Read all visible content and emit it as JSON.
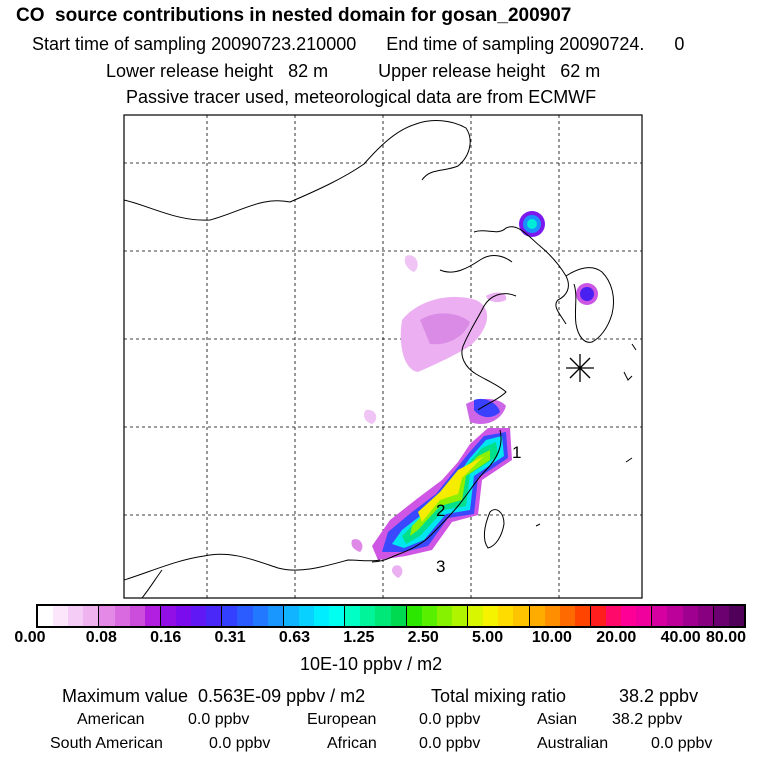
{
  "header": {
    "title": "CO  source contributions in nested domain for gosan_200907",
    "line1": "Start time of sampling 20090723.210000      End time of sampling 20090724.      0",
    "line2": "Lower release height   82 m          Upper release height   62 m",
    "line3": "Passive tracer used, meteorological data are from ECMWF"
  },
  "map": {
    "labels": [
      "1",
      "2",
      "3"
    ],
    "receptor_marker": "star-marker"
  },
  "colorbar": {
    "ticks": [
      "0.00",
      "0.08",
      "0.16",
      "0.31",
      "0.63",
      "1.25",
      "2.50",
      "5.00",
      "10.00",
      "20.00",
      "40.00",
      "80.00"
    ],
    "colors": [
      "#ffffff",
      "#fbe6fb",
      "#f5ccf5",
      "#efb3f0",
      "#e48ae6",
      "#d96ae0",
      "#cc4cdc",
      "#b21fe0",
      "#9210e6",
      "#7a0cee",
      "#6018f4",
      "#4a28f8",
      "#3340ff",
      "#2a5cff",
      "#2278ff",
      "#1a96ff",
      "#10b4ff",
      "#08d0ff",
      "#00ecff",
      "#00fff0",
      "#00ffc4",
      "#00f59a",
      "#00e878",
      "#00da50",
      "#2ce800",
      "#58f000",
      "#86f200",
      "#b0f400",
      "#d8f600",
      "#f5f300",
      "#ffdc00",
      "#ffc400",
      "#ffac00",
      "#ff8e00",
      "#ff6a00",
      "#ff4400",
      "#ff1e1e",
      "#ff0a6a",
      "#ff0096",
      "#f0009c",
      "#d600a0",
      "#bc009a",
      "#a00090",
      "#880080",
      "#6c0070",
      "#500058"
    ],
    "units": "10E-10 ppbv / m2"
  },
  "summary": {
    "max_label": "Maximum value  0.563E-09 ppbv / m2",
    "total_label": "Total mixing ratio",
    "total_value": "38.2 ppbv",
    "american_label": "American",
    "american_value": "0.0 ppbv",
    "european_label": "European",
    "european_value": "0.0 ppbv",
    "asian_label": "Asian",
    "asian_value": "38.2 ppbv",
    "south_american_label": "South American",
    "south_american_value": "0.0 ppbv",
    "african_label": "African",
    "african_value": "0.0 ppbv",
    "australian_label": "Australian",
    "australian_value": "0.0 ppbv"
  }
}
